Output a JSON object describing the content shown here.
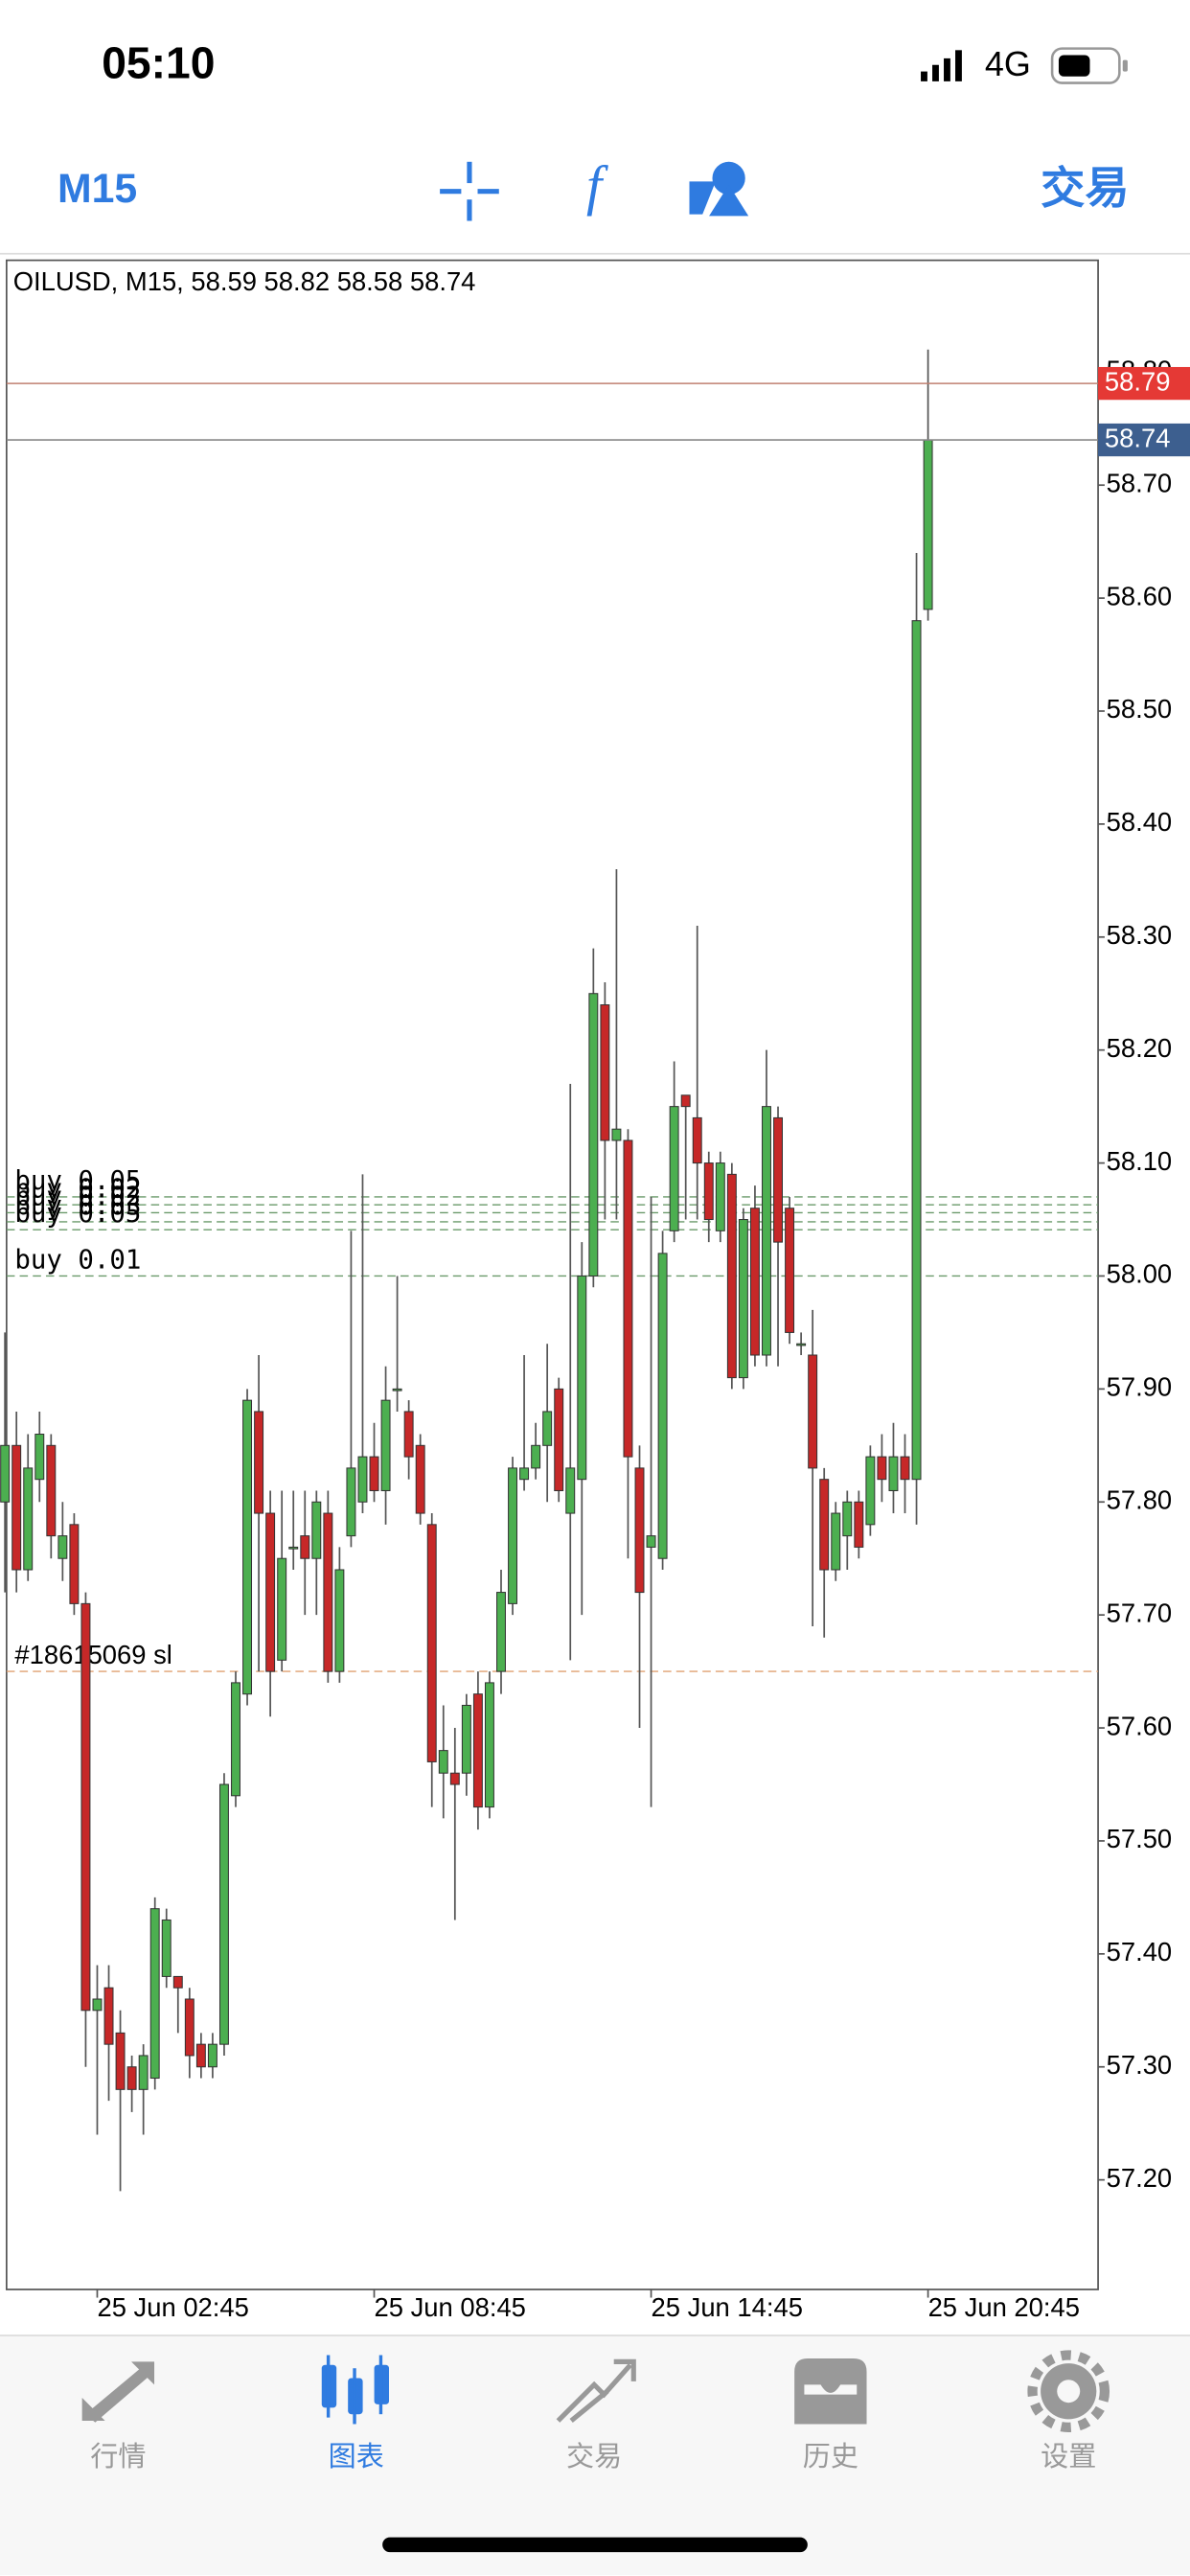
{
  "status": {
    "time": "05:10",
    "network": "4G"
  },
  "toolbar": {
    "timeframe": "M15",
    "trade": "交易"
  },
  "tabs": [
    "行情",
    "图表",
    "交易",
    "历史",
    "设置"
  ],
  "chart_data": {
    "type": "candlestick",
    "title": "OILUSD, M15, 58.59 58.82 58.58 58.74",
    "up_color": "#4caf50",
    "down_color": "#c62828",
    "categories": [
      null,
      null,
      null,
      null,
      null,
      null,
      null,
      null,
      "25 Jun 02:45",
      null,
      null,
      null,
      null,
      null,
      null,
      null,
      null,
      null,
      null,
      null,
      null,
      null,
      null,
      null,
      null,
      null,
      null,
      null,
      null,
      null,
      null,
      null,
      "25 Jun 08:45",
      null,
      null,
      null,
      null,
      null,
      null,
      null,
      null,
      null,
      null,
      null,
      null,
      null,
      null,
      null,
      null,
      null,
      null,
      null,
      null,
      null,
      null,
      null,
      "25 Jun 14:45",
      null,
      null,
      null,
      null,
      null,
      null,
      null,
      null,
      null,
      null,
      null,
      null,
      null,
      null,
      null,
      null,
      null,
      null,
      null,
      null,
      null,
      null,
      null,
      "25 Jun 20:45"
    ],
    "open": [
      57.8,
      57.85,
      57.74,
      57.82,
      57.85,
      57.75,
      57.78,
      57.71,
      57.35,
      57.37,
      57.33,
      57.3,
      57.28,
      57.29,
      57.38,
      57.38,
      57.36,
      57.32,
      57.3,
      57.32,
      57.54,
      57.63,
      57.88,
      57.79,
      57.66,
      57.76,
      57.77,
      57.75,
      57.79,
      57.65,
      57.77,
      57.8,
      57.84,
      57.81,
      57.9,
      57.88,
      57.85,
      57.78,
      57.56,
      57.56,
      57.56,
      57.63,
      57.53,
      57.65,
      57.71,
      57.82,
      57.83,
      57.85,
      57.9,
      57.79,
      57.82,
      58.0,
      58.24,
      58.12,
      58.12,
      57.83,
      57.76,
      57.75,
      58.04,
      58.16,
      58.14,
      58.1,
      58.04,
      58.09,
      57.91,
      58.06,
      57.93,
      58.14,
      58.06,
      57.94,
      57.93,
      57.82,
      57.74,
      57.77,
      57.8,
      57.78,
      57.84,
      57.81,
      57.84,
      57.82,
      58.59
    ],
    "high": [
      57.95,
      57.88,
      57.86,
      57.88,
      57.86,
      57.8,
      57.79,
      57.72,
      57.39,
      57.39,
      57.35,
      57.31,
      57.32,
      57.45,
      57.44,
      57.38,
      57.37,
      57.33,
      57.33,
      57.56,
      57.65,
      57.9,
      57.93,
      57.81,
      57.81,
      57.81,
      57.81,
      57.81,
      57.81,
      57.76,
      58.04,
      58.09,
      57.87,
      57.92,
      58.0,
      57.89,
      57.86,
      57.79,
      57.62,
      57.6,
      57.63,
      57.65,
      57.65,
      57.74,
      57.84,
      57.93,
      57.87,
      57.94,
      57.91,
      58.17,
      58.03,
      58.29,
      58.26,
      58.36,
      58.13,
      57.85,
      58.07,
      58.04,
      58.19,
      58.16,
      58.31,
      58.11,
      58.11,
      58.1,
      58.06,
      58.08,
      58.2,
      58.15,
      58.07,
      57.95,
      57.97,
      57.83,
      57.8,
      57.81,
      57.81,
      57.85,
      57.86,
      57.87,
      57.86,
      58.64,
      58.82
    ],
    "low": [
      57.72,
      57.72,
      57.73,
      57.8,
      57.75,
      57.73,
      57.7,
      57.3,
      57.24,
      57.27,
      57.19,
      57.26,
      57.24,
      57.28,
      57.37,
      57.33,
      57.29,
      57.29,
      57.29,
      57.31,
      57.53,
      57.62,
      57.65,
      57.61,
      57.65,
      57.74,
      57.7,
      57.7,
      57.64,
      57.64,
      57.76,
      57.79,
      57.8,
      57.78,
      57.88,
      57.82,
      57.78,
      57.53,
      57.52,
      57.43,
      57.54,
      57.51,
      57.52,
      57.63,
      57.7,
      57.81,
      57.82,
      57.8,
      57.8,
      57.66,
      57.7,
      57.99,
      58.05,
      58.05,
      57.75,
      57.6,
      57.53,
      57.74,
      58.03,
      58.05,
      58.05,
      58.03,
      58.03,
      57.9,
      57.9,
      57.92,
      57.92,
      57.92,
      57.94,
      57.93,
      57.69,
      57.68,
      57.73,
      57.74,
      57.75,
      57.77,
      57.8,
      57.79,
      57.79,
      57.78,
      58.58
    ],
    "close": [
      57.85,
      57.74,
      57.83,
      57.86,
      57.77,
      57.77,
      57.71,
      57.35,
      57.36,
      57.32,
      57.28,
      57.28,
      57.31,
      57.44,
      57.43,
      57.37,
      57.31,
      57.3,
      57.32,
      57.55,
      57.64,
      57.89,
      57.79,
      57.65,
      57.75,
      57.76,
      57.75,
      57.8,
      57.65,
      57.74,
      57.83,
      57.84,
      57.81,
      57.89,
      57.9,
      57.84,
      57.79,
      57.57,
      57.58,
      57.55,
      57.62,
      57.53,
      57.64,
      57.72,
      57.83,
      57.83,
      57.85,
      57.88,
      57.81,
      57.83,
      58.0,
      58.25,
      58.12,
      58.13,
      57.84,
      57.72,
      57.77,
      58.02,
      58.15,
      58.15,
      58.1,
      58.05,
      58.1,
      57.91,
      58.05,
      57.93,
      58.15,
      58.03,
      57.95,
      57.94,
      57.83,
      57.74,
      57.79,
      57.8,
      57.76,
      57.84,
      57.82,
      57.84,
      57.82,
      58.58,
      58.74
    ],
    "ylim": [
      57.103,
      58.899
    ],
    "yticks": [
      {
        "value": 57.2,
        "label": "57.20"
      },
      {
        "value": 57.3,
        "label": "57.30"
      },
      {
        "value": 57.4,
        "label": "57.40"
      },
      {
        "value": 57.5,
        "label": "57.50"
      },
      {
        "value": 57.6,
        "label": "57.60"
      },
      {
        "value": 57.7,
        "label": "57.70"
      },
      {
        "value": 57.8,
        "label": "57.80"
      },
      {
        "value": 57.9,
        "label": "57.90"
      },
      {
        "value": 58.0,
        "label": "58.00"
      },
      {
        "value": 58.1,
        "label": "58.10"
      },
      {
        "value": 58.2,
        "label": "58.20"
      },
      {
        "value": 58.3,
        "label": "58.30"
      },
      {
        "value": 58.4,
        "label": "58.40"
      },
      {
        "value": 58.5,
        "label": "58.50"
      },
      {
        "value": 58.6,
        "label": "58.60"
      },
      {
        "value": 58.7,
        "label": "58.70"
      },
      {
        "value": 58.8,
        "label": "58.80"
      }
    ],
    "ask": {
      "value": 58.79,
      "color": "#e53935"
    },
    "bid": {
      "value": 58.74,
      "color": "#3d5f8f"
    },
    "orders": [
      {
        "label": "buy 0.05",
        "value": 58.07
      },
      {
        "label": "buy 0.02",
        "value": 58.063
      },
      {
        "label": "buy 0.02",
        "value": 58.056
      },
      {
        "label": "buy 0.03",
        "value": 58.048
      },
      {
        "label": "buy 0.05",
        "value": 58.041
      },
      {
        "label": "buy 0.01",
        "value": 58.0
      }
    ],
    "stop_loss": {
      "label": "#18615069 sl",
      "value": 57.65
    }
  }
}
